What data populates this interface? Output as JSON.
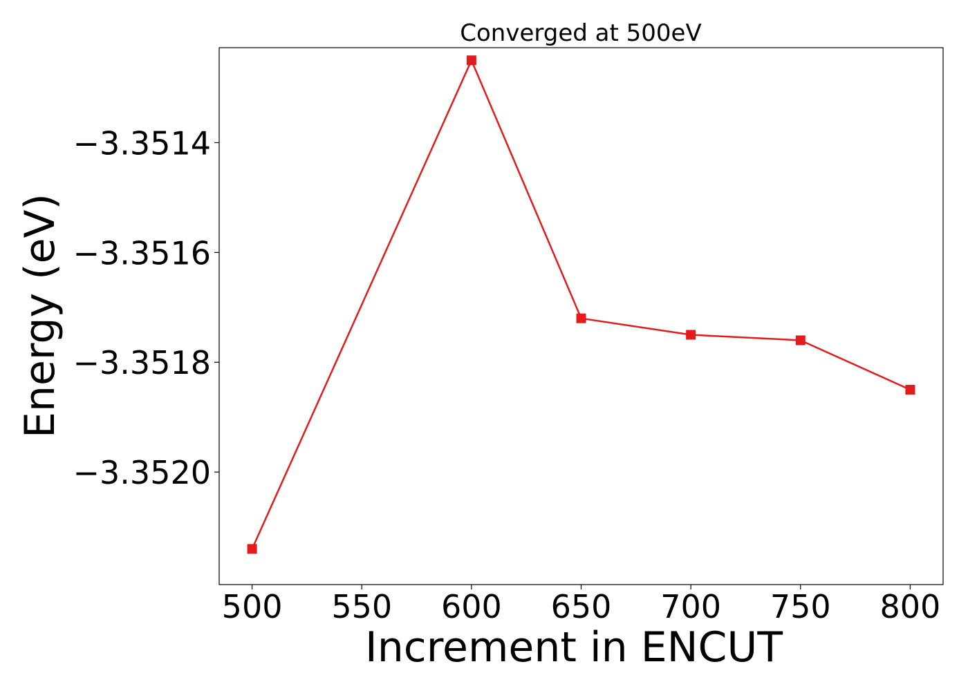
{
  "chart_data": {
    "type": "line",
    "title": "Converged at 500eV",
    "xlabel": "Increment in ENCUT",
    "ylabel": "Energy (eV)",
    "x": [
      500,
      600,
      650,
      700,
      750,
      800
    ],
    "series": [
      {
        "values": [
          -3.35214,
          -3.35125,
          -3.35172,
          -3.35175,
          -3.35176,
          -3.35185
        ],
        "color": "#e41a1c",
        "marker": "square"
      }
    ],
    "xlim": [
      485,
      815
    ],
    "ylim": [
      -3.352205,
      -3.351227
    ],
    "xticks": [
      500,
      550,
      600,
      650,
      700,
      750,
      800
    ],
    "xtick_labels": [
      "500",
      "550",
      "600",
      "650",
      "700",
      "750",
      "800"
    ],
    "yticks": [
      -3.3514,
      -3.3516,
      -3.3518,
      -3.352
    ],
    "ytick_labels": [
      "−3.3514",
      "−3.3516",
      "−3.3518",
      "−3.3520"
    ],
    "grid": false,
    "legend": "none"
  }
}
